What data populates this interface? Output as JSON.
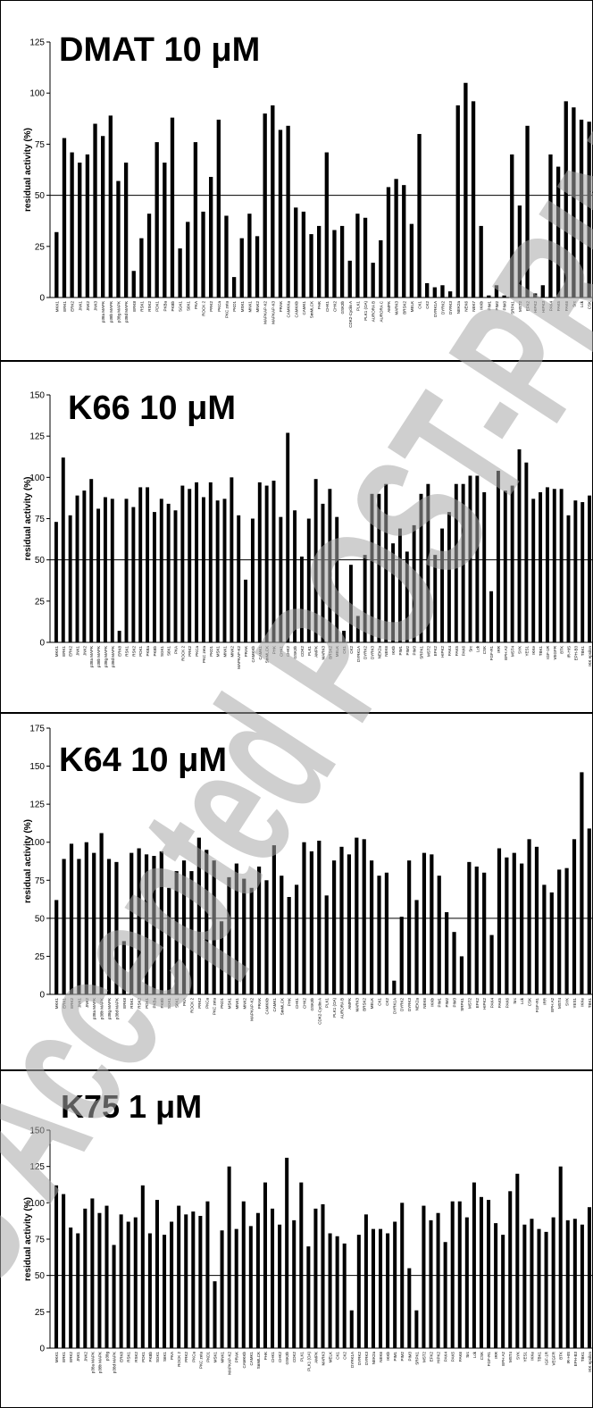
{
  "watermark": "ACS Accepted POST-PRINT",
  "chart_data": [
    {
      "type": "bar",
      "title": "DMAT 10 μM",
      "ylabel": "residual activity (%)",
      "ylim": [
        0,
        125
      ],
      "yticks": [
        0,
        25,
        50,
        75,
        100,
        125
      ],
      "reference_line": 50,
      "categories": [
        "MKK1",
        "ERK1",
        "ERK2",
        "JNK1",
        "JNK2",
        "JNK3",
        "p38a MAPK",
        "p38b MAPK",
        "p38g MAPK",
        "p38d MAPK",
        "ERK8",
        "RSK1",
        "RSK2",
        "PDK1",
        "PKBa",
        "PKBb",
        "SGK1",
        "S6K1",
        "PKA",
        "ROCK 2",
        "PRK2",
        "PKCa",
        "PKC zeta",
        "PKD1",
        "MSK1",
        "MNK1",
        "MNK2",
        "MAPKAP-K2",
        "MAPKAP-K3",
        "PRAK",
        "CAMKKa",
        "CAMKKb",
        "CAMK1",
        "SmMLCK",
        "PHK",
        "CHK1",
        "CHK2",
        "GSK3b",
        "CDK2-Cyclin A",
        "PLK1",
        "PLK1 (OA)",
        "AURORA B",
        "AURORA C",
        "AMPK",
        "MARK3",
        "BRSK2",
        "MELK",
        "CK1",
        "CK2",
        "DYRK1A",
        "DYRK2",
        "DYRK3",
        "NEK2a",
        "NEK6",
        "NEK7",
        "IKKb",
        "PIM1",
        "PIM2",
        "PIM3",
        "SRPK1",
        "MST2",
        "EFK2",
        "HIPK2",
        "HIPK3",
        "PAK4",
        "PAK5",
        "PAK6",
        "Src",
        "Lck",
        "CSK"
      ],
      "values": [
        32,
        78,
        71,
        66,
        70,
        85,
        79,
        89,
        57,
        66,
        13,
        29,
        41,
        76,
        66,
        88,
        24,
        37,
        76,
        42,
        59,
        87,
        40,
        10,
        29,
        41,
        30,
        90,
        94,
        82,
        84,
        44,
        42,
        31,
        35,
        71,
        33,
        35,
        18,
        41,
        39,
        17,
        28,
        54,
        58,
        55,
        36,
        80,
        7,
        5,
        6,
        3,
        94,
        105,
        96,
        35,
        1,
        6,
        1,
        70,
        45,
        84,
        2,
        6,
        70,
        64,
        96,
        93,
        87,
        86
      ]
    },
    {
      "type": "bar",
      "title": "K66 10 μM",
      "ylabel": "residual activity (%)",
      "ylim": [
        0,
        150
      ],
      "yticks": [
        0,
        25,
        50,
        75,
        100,
        125,
        150
      ],
      "reference_line": 50,
      "categories": [
        "MKK1",
        "ERK1",
        "ERK2",
        "JNK1",
        "JNK2",
        "p38a MAPK",
        "p38b MAPK",
        "p38g MAPK",
        "p38d MAPK",
        "ERK8",
        "RSK1",
        "RSK2",
        "PDK1",
        "PKBa",
        "PKBb",
        "SGK1",
        "S6K1",
        "PKA",
        "ROCK 2",
        "PRK2",
        "PKCa",
        "PKC zeta",
        "PKD1",
        "MSK1",
        "MNK1",
        "MNK2",
        "MAPKAP-K2",
        "PRAK",
        "CAMKKb",
        "CAMK1",
        "SmMLCK",
        "PHK",
        "CHK1",
        "CHK2",
        "GSK3b",
        "CDK2",
        "PLK1",
        "AMPK",
        "MARK3",
        "BRSK2",
        "MELK",
        "CK1",
        "CK2",
        "DYRK1A",
        "DYRK2",
        "DYRK3",
        "NEK2a",
        "NEK6",
        "IKKb",
        "PIM1",
        "PIM2",
        "PIM3",
        "SRPK1",
        "MST2",
        "EFK2",
        "HIPK2",
        "PAK4",
        "PAK5",
        "PAK6",
        "Src",
        "Lck",
        "CSK",
        "FGF-R1",
        "IRR",
        "EPH A2",
        "MST4",
        "SYK",
        "YES1",
        "IKKe",
        "TBK1",
        "IGF-1R",
        "VEGFR",
        "BTK",
        "IR-HIS",
        "EPH-B3",
        "TBK1",
        "IKK epsilon"
      ],
      "values": [
        73,
        112,
        77,
        89,
        92,
        99,
        81,
        88,
        87,
        7,
        87,
        82,
        94,
        94,
        79,
        87,
        84,
        80,
        95,
        93,
        97,
        88,
        97,
        86,
        87,
        100,
        77,
        38,
        75,
        97,
        95,
        98,
        76,
        127,
        80,
        52,
        75,
        99,
        84,
        93,
        76,
        7,
        47,
        16,
        53,
        90,
        90,
        96,
        60,
        69,
        55,
        71,
        90,
        96,
        53,
        69,
        79,
        96,
        96,
        101,
        101,
        91,
        31,
        104,
        92,
        95,
        117,
        109,
        87,
        91,
        94,
        93,
        93,
        77,
        86,
        85,
        89
      ]
    },
    {
      "type": "bar",
      "title": "K64 10 μM",
      "ylabel": "residual activity (%)",
      "ylim": [
        0,
        175
      ],
      "yticks": [
        0,
        25,
        50,
        75,
        100,
        125,
        150,
        175
      ],
      "reference_line": 50,
      "categories": [
        "MKK1",
        "ERK1",
        "ERK2",
        "JNK1",
        "JNK2",
        "p38a MAPK",
        "p38b MAPK",
        "p38g MAPK",
        "p38d MAPK",
        "ERK8",
        "RSK1",
        "RSK2",
        "PDK1",
        "PKBa",
        "PKBb",
        "SGK1",
        "S6K1",
        "PKA",
        "ROCK 2",
        "PRK2",
        "PKCa",
        "PKC zeta",
        "PKD1",
        "MSK1",
        "MNK1",
        "MNK2",
        "MAPKAP-K2",
        "PRAK",
        "CAMKKb",
        "CAMK1",
        "SmMLCK",
        "PHK",
        "CHK1",
        "CHK2",
        "GSK3b",
        "CDK2-Cyclin A",
        "PLK1",
        "PLK1 (OA)",
        "AURORA B",
        "AMPK",
        "MARK3",
        "BRSK2",
        "MELK",
        "CK1",
        "CK2",
        "DYRK1A",
        "DYRK2",
        "DYRK3",
        "NEK2a",
        "NEK6",
        "IKKb",
        "PIM1",
        "PIM2",
        "PIM3",
        "SRPK1",
        "MST2",
        "EFK2",
        "HIPK2",
        "PAK4",
        "PAK5",
        "PAK6",
        "Src",
        "Lck",
        "CSK",
        "FGF-R1",
        "IRR",
        "EPH A2",
        "MST4",
        "SYK",
        "YES1",
        "IKKe",
        "TBK1"
      ],
      "values": [
        62,
        89,
        99,
        89,
        100,
        93,
        106,
        89,
        87,
        35,
        93,
        96,
        92,
        91,
        94,
        70,
        81,
        88,
        81,
        103,
        95,
        88,
        48,
        77,
        86,
        76,
        70,
        84,
        75,
        98,
        78,
        64,
        72,
        100,
        94,
        101,
        65,
        88,
        97,
        92,
        103,
        102,
        88,
        78,
        80,
        9,
        51,
        88,
        62,
        93,
        92,
        78,
        54,
        41,
        25,
        87,
        84,
        80,
        39,
        96,
        90,
        93,
        86,
        102,
        97,
        72,
        67,
        82,
        83,
        102,
        146,
        109
      ]
    },
    {
      "type": "bar",
      "title": "K75 1 μM",
      "ylabel": "residual activity (%)",
      "ylim": [
        0,
        150
      ],
      "yticks": [
        0,
        25,
        50,
        75,
        100,
        125,
        150
      ],
      "reference_line": 50,
      "categories": [
        "MKK1",
        "ERK1",
        "ERK2",
        "JNK1",
        "JNK2",
        "p38a MAPK",
        "p38b MAPK",
        "p38g",
        "p38d MAPK",
        "ERK8",
        "RSK1",
        "RSK2",
        "PDK1",
        "PKBb",
        "SGK1",
        "S6K1",
        "PKA",
        "ROCK 2",
        "PRK2",
        "PKCa",
        "PKC zeta",
        "PKD1",
        "MSK1",
        "MNK1",
        "MAPKAP-K2",
        "PRAK",
        "CAMKKb",
        "CAMK1",
        "SmMLCK",
        "PHK",
        "CHK1",
        "CHK2",
        "GSK3b",
        "CDK2",
        "PLK1",
        "PLK1 (OA)",
        "AMPK",
        "MARK3",
        "MELK",
        "CK1",
        "CK2",
        "DYRK1A",
        "DYRK2",
        "DYRK3",
        "NEK2a",
        "NEK6",
        "IKKb",
        "PIM1",
        "PIM2",
        "PIM3",
        "SRPK1",
        "MST2",
        "EFK2",
        "HIPK2",
        "PAK4",
        "PAK5",
        "PAK6",
        "Src",
        "Lck",
        "CSK",
        "FGF-R1",
        "IRR",
        "EPH A2",
        "MST4",
        "SYK",
        "YES1",
        "IKKe",
        "TBK1",
        "IGF-1R",
        "VEGFR",
        "BTK",
        "IR-HIS",
        "EPH-B3",
        "TBK1",
        "IKK epsilon"
      ],
      "values": [
        112,
        106,
        83,
        79,
        96,
        103,
        93,
        98,
        71,
        92,
        87,
        90,
        112,
        79,
        102,
        78,
        87,
        98,
        92,
        94,
        91,
        101,
        46,
        81,
        125,
        82,
        101,
        84,
        93,
        114,
        96,
        85,
        131,
        88,
        114,
        70,
        96,
        99,
        79,
        77,
        72,
        26,
        78,
        92,
        82,
        82,
        79,
        87,
        100,
        55,
        26,
        98,
        88,
        93,
        73,
        101,
        101,
        90,
        114,
        104,
        102,
        86,
        78,
        108,
        120,
        85,
        89,
        82,
        80,
        90,
        125,
        88,
        89,
        85,
        97
      ]
    }
  ]
}
